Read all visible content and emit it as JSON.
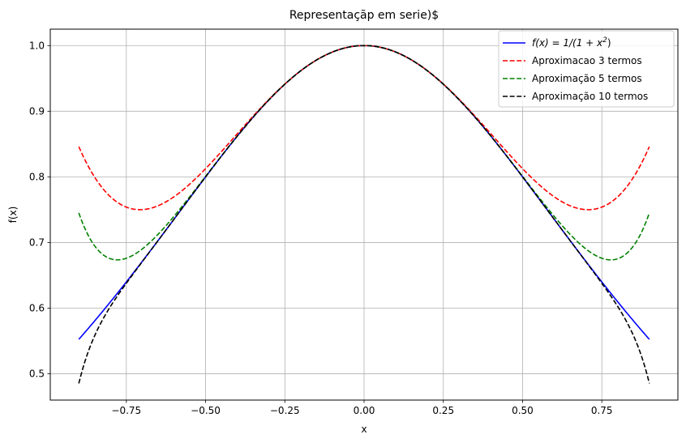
{
  "chart_data": {
    "type": "line",
    "title": "Representaçãp em serie)$",
    "xlabel": "x",
    "ylabel": "f(x)",
    "xlim": [
      -0.99,
      0.99
    ],
    "ylim": [
      0.46,
      1.025
    ],
    "xticks": [
      -0.75,
      -0.5,
      -0.25,
      0.0,
      0.25,
      0.5,
      0.75
    ],
    "xtick_labels": [
      "−0.75",
      "−0.50",
      "−0.25",
      "0.00",
      "0.25",
      "0.50",
      "0.75"
    ],
    "yticks": [
      0.5,
      0.6,
      0.7,
      0.8,
      0.9,
      1.0
    ],
    "ytick_labels": [
      "0.5",
      "0.6",
      "0.7",
      "0.8",
      "0.9",
      "1.0"
    ],
    "grid": true,
    "legend_position": "top-right",
    "x_range": [
      -0.9,
      0.9
    ],
    "series": [
      {
        "name": "f(x) = 1/(1 + x²)",
        "legend_prefix": "f(x) = 1/(1 + x",
        "legend_sup": "2",
        "legend_suffix": ")",
        "color": "#0000ff",
        "style": "solid",
        "terms": 0
      },
      {
        "name": "Aproximacao 3 termos",
        "color": "#ff0000",
        "style": "dashed",
        "terms": 3
      },
      {
        "name": "Aproximação 5 termos",
        "color": "#008000",
        "style": "dashed",
        "terms": 5
      },
      {
        "name": "Aproximação 10 termos",
        "color": "#000000",
        "style": "dashed",
        "terms": 10
      }
    ]
  }
}
